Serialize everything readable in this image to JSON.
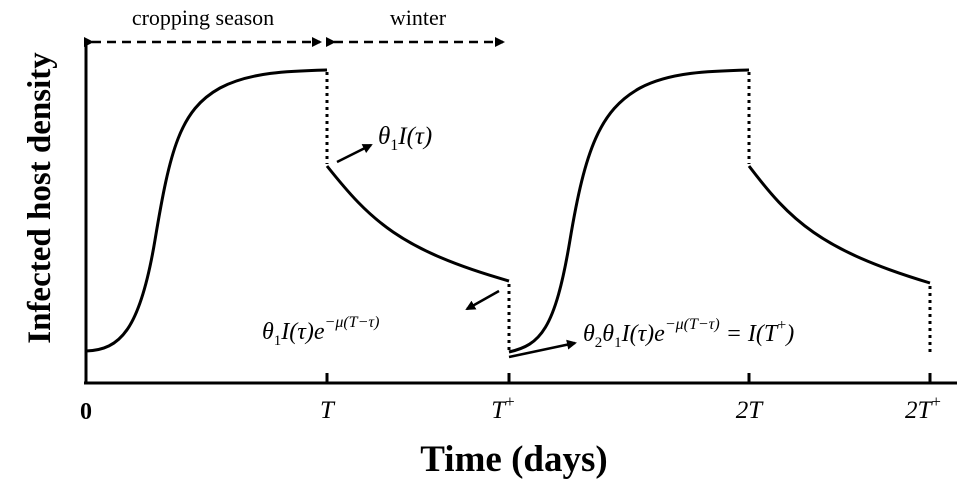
{
  "figure": {
    "y_axis_label": "Infected host density",
    "x_axis_label": "Time (days)",
    "season_labels": {
      "cropping": "cropping season",
      "winter": "winter"
    },
    "x_ticks": {
      "zero": "0",
      "T": {
        "base": "T"
      },
      "T_plus": {
        "base": "T",
        "sup": "+"
      },
      "two_T": {
        "base": "2T"
      },
      "two_T_plus": {
        "base": "2T",
        "sup": "+"
      }
    },
    "annotations": {
      "drop": {
        "theta": "θ",
        "sub": "1",
        "rest": "I(τ)"
      },
      "decay": {
        "theta": "θ",
        "sub": "1",
        "rest": "I(τ)e",
        "exp": "−μ(T−τ)"
      },
      "reset": {
        "theta2": "θ",
        "sub2": "2",
        "theta1": "θ",
        "sub1": "1",
        "rest": "I(τ)e",
        "exp": "−μ(T−τ)",
        "rhs": " = I(T",
        "rhs_sup": "+",
        "rhs_close": ")"
      }
    },
    "colors": {
      "ink": "#000000",
      "background": "#ffffff"
    }
  }
}
